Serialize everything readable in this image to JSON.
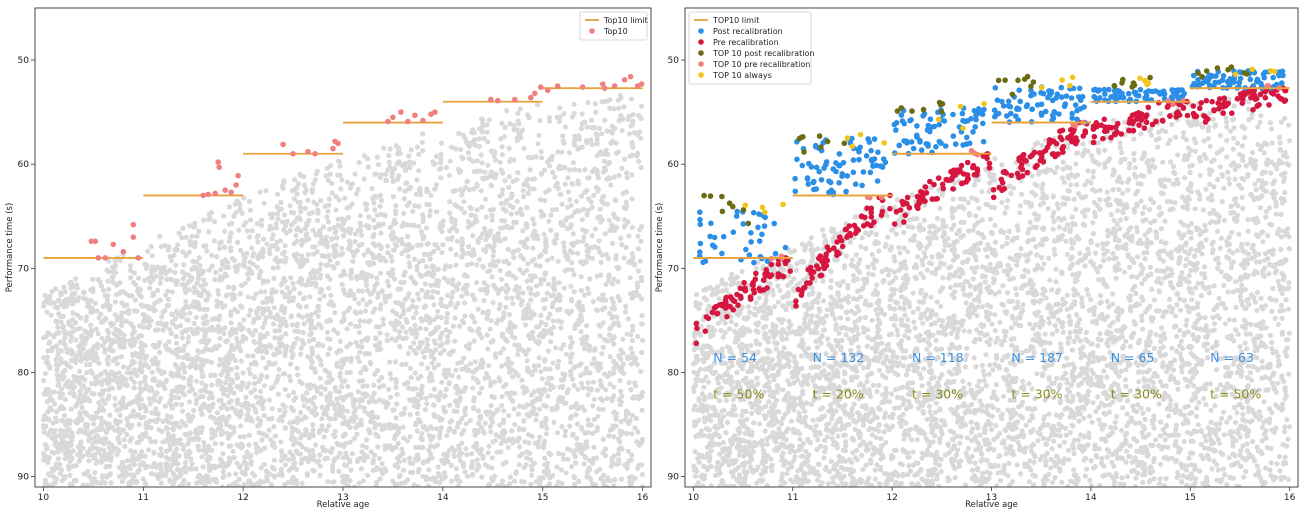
{
  "chart_data": [
    {
      "type": "scatter",
      "xlabel": "Relative age",
      "ylabel": "Performance time (s)",
      "xlim": [
        10,
        16
      ],
      "ylim": [
        91,
        45
      ],
      "y_inverted": true,
      "x_ticks": [
        "10",
        "11",
        "12",
        "13",
        "14",
        "15",
        "16"
      ],
      "y_ticks": [
        "50",
        "60",
        "70",
        "80",
        "90"
      ],
      "legend_position": "top-right",
      "legend": [
        {
          "name": "Top10 limit",
          "kind": "line",
          "color": "#e8a33d"
        },
        {
          "name": "Top10",
          "kind": "marker",
          "color": "#f08080"
        }
      ],
      "background_cloud": {
        "color": "#d9d9d9",
        "x_range": [
          10,
          16
        ],
        "y_range": [
          53,
          91
        ]
      },
      "top10_limit": {
        "color": "#e8a33d",
        "segments": [
          {
            "x0": 10.0,
            "x1": 11.0,
            "y": 69.0
          },
          {
            "x0": 11.0,
            "x1": 12.0,
            "y": 63.0
          },
          {
            "x0": 12.0,
            "x1": 13.0,
            "y": 59.0
          },
          {
            "x0": 13.0,
            "x1": 14.0,
            "y": 56.0
          },
          {
            "x0": 14.0,
            "x1": 15.0,
            "y": 54.0
          },
          {
            "x0": 15.0,
            "x1": 16.0,
            "y": 52.7
          }
        ]
      },
      "series": [
        {
          "name": "Top10",
          "color": "#f08080",
          "points": [
            [
              10.48,
              67.4
            ],
            [
              10.52,
              67.4
            ],
            [
              10.62,
              69.0
            ],
            [
              10.7,
              67.7
            ],
            [
              10.8,
              68.4
            ],
            [
              10.9,
              67.0
            ],
            [
              10.9,
              65.8
            ],
            [
              10.95,
              69.0
            ],
            [
              10.55,
              69.0
            ],
            [
              11.6,
              63.0
            ],
            [
              11.65,
              62.9
            ],
            [
              11.72,
              62.8
            ],
            [
              11.75,
              59.8
            ],
            [
              11.76,
              60.3
            ],
            [
              11.82,
              62.5
            ],
            [
              11.88,
              62.7
            ],
            [
              11.93,
              62.0
            ],
            [
              11.95,
              61.1
            ],
            [
              12.4,
              58.1
            ],
            [
              12.5,
              59.0
            ],
            [
              12.65,
              58.8
            ],
            [
              12.72,
              59.0
            ],
            [
              12.9,
              58.5
            ],
            [
              12.92,
              57.8
            ],
            [
              12.95,
              58.0
            ],
            [
              13.45,
              55.9
            ],
            [
              13.5,
              55.5
            ],
            [
              13.58,
              55.0
            ],
            [
              13.65,
              55.9
            ],
            [
              13.72,
              55.3
            ],
            [
              13.8,
              55.8
            ],
            [
              13.88,
              55.2
            ],
            [
              13.92,
              55.0
            ],
            [
              14.48,
              53.8
            ],
            [
              14.55,
              53.9
            ],
            [
              14.72,
              53.8
            ],
            [
              14.88,
              53.6
            ],
            [
              14.92,
              53.2
            ],
            [
              14.98,
              52.6
            ],
            [
              15.05,
              52.9
            ],
            [
              15.15,
              52.5
            ],
            [
              15.4,
              52.6
            ],
            [
              15.6,
              52.3
            ],
            [
              15.62,
              52.7
            ],
            [
              15.72,
              52.5
            ],
            [
              15.82,
              51.9
            ],
            [
              15.88,
              51.6
            ],
            [
              15.95,
              52.5
            ],
            [
              15.99,
              52.3
            ]
          ]
        }
      ]
    },
    {
      "type": "scatter",
      "xlabel": "Relative age",
      "ylabel": "Performance time (s)",
      "xlim": [
        10,
        16
      ],
      "ylim": [
        91,
        45
      ],
      "y_inverted": true,
      "x_ticks": [
        "10",
        "11",
        "12",
        "13",
        "14",
        "15",
        "16"
      ],
      "y_ticks": [
        "50",
        "60",
        "70",
        "80",
        "90"
      ],
      "legend_position": "top-left",
      "legend": [
        {
          "name": "TOP10 limit",
          "kind": "line",
          "color": "#e8a33d"
        },
        {
          "name": "Post recalibration",
          "kind": "marker",
          "color": "#2b8fe8"
        },
        {
          "name": "Pre recalibration",
          "kind": "marker",
          "color": "#d6163f"
        },
        {
          "name": "TOP 10 post recalibration",
          "kind": "marker",
          "color": "#6b6b12"
        },
        {
          "name": "TOP 10 pre recalibration",
          "kind": "marker",
          "color": "#f08080"
        },
        {
          "name": "TOP 10 always",
          "kind": "marker",
          "color": "#f2c51c"
        }
      ],
      "background_cloud": {
        "color": "#d9d9d9",
        "x_range": [
          10,
          16
        ],
        "y_range": [
          53,
          91
        ]
      },
      "top10_limit": {
        "color": "#e8a33d",
        "segments": [
          {
            "x0": 10.0,
            "x1": 11.0,
            "y": 69.0
          },
          {
            "x0": 11.0,
            "x1": 12.0,
            "y": 63.0
          },
          {
            "x0": 12.0,
            "x1": 13.0,
            "y": 59.0
          },
          {
            "x0": 13.0,
            "x1": 14.0,
            "y": 56.0
          },
          {
            "x0": 14.0,
            "x1": 15.0,
            "y": 54.0
          },
          {
            "x0": 15.0,
            "x1": 16.0,
            "y": 52.7
          }
        ]
      },
      "groups": [
        {
          "x0": 10,
          "x1": 11,
          "post_y": [
            64.5,
            69.5
          ],
          "pre_top": 69.0,
          "pre_bottom": 76.0,
          "top_post_y": [
            62.8,
            65.8
          ],
          "always_y": [
            63.5,
            66.0
          ]
        },
        {
          "x0": 11,
          "x1": 12,
          "post_y": [
            57.5,
            63.0
          ],
          "pre_top": 63.0,
          "pre_bottom": 72.5,
          "top_post_y": [
            57.3,
            59.0
          ],
          "always_y": [
            56.5,
            58.5
          ]
        },
        {
          "x0": 12,
          "x1": 13,
          "post_y": [
            54.5,
            59.0
          ],
          "pre_top": 59.0,
          "pre_bottom": 65.0,
          "top_post_y": [
            54.0,
            56.0
          ],
          "always_y": [
            54.0,
            57.0
          ]
        },
        {
          "x0": 13,
          "x1": 14,
          "post_y": [
            52.5,
            56.0
          ],
          "pre_top": 56.0,
          "pre_bottom": 62.0,
          "top_post_y": [
            51.5,
            53.5
          ],
          "always_y": [
            51.5,
            53.0
          ]
        },
        {
          "x0": 14,
          "x1": 15,
          "post_y": [
            52.8,
            54.0
          ],
          "pre_top": 54.0,
          "pre_bottom": 56.8,
          "top_post_y": [
            51.6,
            52.8
          ],
          "always_y": [
            51.6,
            52.5
          ]
        },
        {
          "x0": 15,
          "x1": 16,
          "post_y": [
            51.0,
            52.7
          ],
          "pre_top": 52.7,
          "pre_bottom": 55.0,
          "top_post_y": [
            50.6,
            51.8
          ],
          "always_y": [
            50.2,
            51.5
          ]
        }
      ],
      "annotations": [
        {
          "x": 10.2,
          "n_label": "N = 54",
          "t_label": "t = 50%"
        },
        {
          "x": 11.2,
          "n_label": "N = 132",
          "t_label": "t = 20%"
        },
        {
          "x": 12.2,
          "n_label": "N = 118",
          "t_label": "t = 30%"
        },
        {
          "x": 13.2,
          "n_label": "N = 187",
          "t_label": "t = 30%"
        },
        {
          "x": 14.2,
          "n_label": "N = 65",
          "t_label": "t = 30%"
        },
        {
          "x": 15.2,
          "n_label": "N = 63",
          "t_label": "t = 50%"
        }
      ],
      "annotation_y": {
        "n": 79.0,
        "t": 82.5
      }
    }
  ]
}
